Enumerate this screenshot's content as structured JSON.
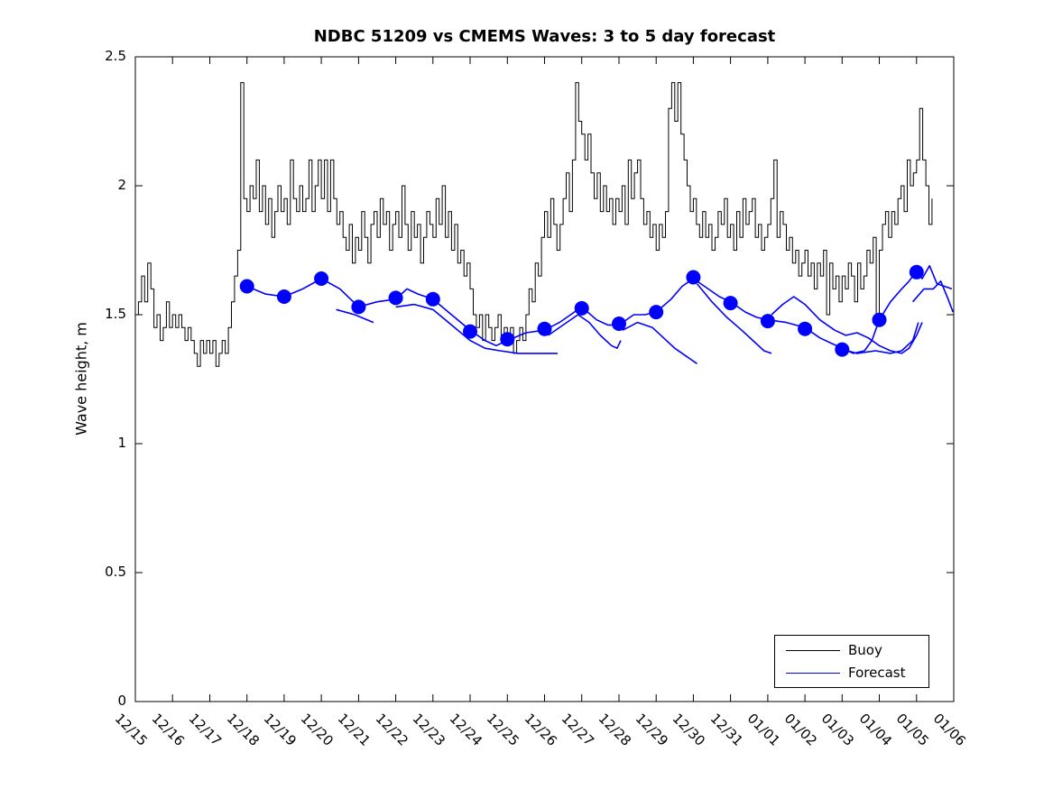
{
  "figure": {
    "title": "NDBC 51209 vs CMEMS Waves: 3 to 5 day forecast",
    "ylabel": "Wave height, m",
    "background_color": "#ffffff",
    "axis_color": "#000000"
  },
  "legend": {
    "items": [
      {
        "label": "Buoy",
        "color": "#000000"
      },
      {
        "label": "Forecast",
        "color": "#0000ff"
      }
    ]
  },
  "chart_data": {
    "type": "line",
    "title": "NDBC 51209 vs CMEMS Waves: 3 to 5 day forecast",
    "xlabel": "",
    "ylabel": "Wave height, m",
    "ylim": [
      0,
      2.5
    ],
    "yticks": [
      0,
      0.5,
      1,
      1.5,
      2,
      2.5
    ],
    "ytick_labels": [
      "0",
      "0.5",
      "1",
      "1.5",
      "2",
      "2.5"
    ],
    "xlim_days": [
      0,
      22
    ],
    "xtick_days": [
      0,
      1,
      2,
      3,
      4,
      5,
      6,
      7,
      8,
      9,
      10,
      11,
      12,
      13,
      14,
      15,
      16,
      17,
      18,
      19,
      20,
      21,
      22
    ],
    "xtick_labels": [
      "12/15",
      "12/16",
      "12/17",
      "12/18",
      "12/19",
      "12/20",
      "12/21",
      "12/22",
      "12/23",
      "12/24",
      "12/25",
      "12/26",
      "12/27",
      "12/28",
      "12/29",
      "12/30",
      "12/31",
      "01/01",
      "01/02",
      "01/03",
      "01/04",
      "01/05",
      "01/06"
    ],
    "xtick_label_rotation_deg": 45,
    "grid": false,
    "legend_position": "southeast",
    "series": [
      {
        "name": "Buoy",
        "color": "#000000",
        "line_width": 1,
        "units": "m",
        "t0_days": 0,
        "dt_days": 0.083333,
        "values": [
          1.5,
          1.55,
          1.65,
          1.55,
          1.7,
          1.6,
          1.45,
          1.5,
          1.4,
          1.45,
          1.55,
          1.45,
          1.5,
          1.45,
          1.5,
          1.45,
          1.4,
          1.45,
          1.4,
          1.35,
          1.3,
          1.4,
          1.35,
          1.4,
          1.35,
          1.4,
          1.3,
          1.35,
          1.4,
          1.35,
          1.45,
          1.55,
          1.65,
          1.75,
          2.4,
          1.95,
          1.9,
          2.0,
          1.95,
          2.1,
          1.9,
          2.0,
          1.85,
          1.95,
          1.8,
          1.9,
          2.0,
          1.9,
          1.95,
          1.85,
          2.1,
          1.95,
          1.9,
          2.0,
          1.9,
          1.95,
          2.1,
          1.9,
          2.0,
          2.1,
          1.95,
          2.1,
          1.9,
          2.1,
          1.95,
          1.85,
          1.9,
          1.8,
          1.75,
          1.85,
          1.7,
          1.8,
          1.75,
          1.9,
          1.8,
          1.7,
          1.85,
          1.9,
          1.8,
          1.95,
          1.85,
          1.9,
          1.75,
          1.85,
          1.9,
          1.8,
          2.0,
          1.85,
          1.75,
          1.9,
          1.8,
          1.85,
          1.7,
          1.8,
          1.9,
          1.85,
          1.8,
          1.95,
          1.85,
          2.0,
          1.8,
          1.9,
          1.75,
          1.85,
          1.7,
          1.75,
          1.65,
          1.7,
          1.6,
          1.5,
          1.45,
          1.5,
          1.4,
          1.5,
          1.45,
          1.4,
          1.45,
          1.5,
          1.4,
          1.45,
          1.4,
          1.45,
          1.35,
          1.4,
          1.45,
          1.4,
          1.5,
          1.6,
          1.55,
          1.7,
          1.65,
          1.8,
          1.9,
          1.8,
          1.95,
          1.85,
          1.75,
          1.85,
          1.95,
          2.05,
          1.9,
          2.1,
          2.4,
          2.25,
          2.2,
          2.1,
          2.2,
          2.05,
          1.95,
          2.05,
          1.9,
          2.0,
          1.9,
          1.95,
          1.85,
          1.95,
          1.9,
          2.0,
          1.85,
          2.1,
          1.95,
          2.05,
          2.1,
          1.95,
          1.85,
          1.9,
          1.8,
          1.85,
          1.75,
          1.85,
          1.8,
          1.9,
          2.3,
          2.4,
          2.25,
          2.4,
          2.2,
          2.1,
          2.0,
          1.9,
          1.95,
          1.85,
          1.8,
          1.9,
          1.8,
          1.85,
          1.75,
          1.8,
          1.9,
          1.85,
          1.95,
          1.8,
          1.85,
          1.75,
          1.9,
          1.8,
          1.95,
          1.85,
          1.9,
          1.95,
          1.8,
          1.85,
          1.75,
          1.8,
          1.85,
          1.95,
          2.1,
          1.8,
          1.9,
          1.85,
          1.75,
          1.8,
          1.7,
          1.75,
          1.65,
          1.7,
          1.75,
          1.65,
          1.7,
          1.6,
          1.7,
          1.65,
          1.75,
          1.5,
          1.7,
          1.6,
          1.65,
          1.55,
          1.65,
          1.6,
          1.7,
          1.65,
          1.55,
          1.7,
          1.6,
          1.65,
          1.75,
          1.7,
          1.8,
          1.5,
          1.75,
          1.85,
          1.9,
          1.8,
          1.9,
          1.85,
          1.95,
          2.0,
          1.9,
          2.1,
          2.0,
          2.05,
          2.1,
          2.3,
          2.1,
          2.0,
          1.85,
          1.95
        ]
      },
      {
        "name": "Forecast",
        "color": "#0000ff",
        "line_width": 1.6,
        "units": "m",
        "marker_style": "filled-circle",
        "marker_radius_px": 8,
        "main": [
          [
            3.0,
            1.61
          ],
          [
            3.5,
            1.58
          ],
          [
            4.0,
            1.57
          ],
          [
            4.5,
            1.6
          ],
          [
            5.0,
            1.64
          ],
          [
            5.5,
            1.6
          ],
          [
            6.0,
            1.53
          ],
          [
            6.5,
            1.55
          ],
          [
            7.0,
            1.56
          ],
          [
            7.3,
            1.6
          ],
          [
            7.6,
            1.58
          ],
          [
            8.0,
            1.56
          ],
          [
            8.5,
            1.5
          ],
          [
            9.0,
            1.44
          ],
          [
            9.4,
            1.4
          ],
          [
            9.7,
            1.38
          ],
          [
            10.0,
            1.4
          ],
          [
            10.5,
            1.43
          ],
          [
            11.0,
            1.44
          ],
          [
            11.4,
            1.47
          ],
          [
            11.7,
            1.5
          ],
          [
            12.0,
            1.53
          ],
          [
            12.4,
            1.48
          ],
          [
            12.7,
            1.46
          ],
          [
            13.0,
            1.46
          ],
          [
            13.4,
            1.5
          ],
          [
            13.7,
            1.5
          ],
          [
            14.0,
            1.51
          ],
          [
            14.4,
            1.56
          ],
          [
            14.7,
            1.61
          ],
          [
            15.0,
            1.64
          ],
          [
            15.4,
            1.6
          ],
          [
            15.7,
            1.57
          ],
          [
            16.0,
            1.55
          ],
          [
            16.4,
            1.51
          ],
          [
            16.7,
            1.49
          ],
          [
            17.0,
            1.48
          ],
          [
            17.5,
            1.47
          ],
          [
            18.0,
            1.45
          ],
          [
            18.4,
            1.41
          ],
          [
            18.7,
            1.39
          ],
          [
            19.0,
            1.37
          ],
          [
            19.3,
            1.35
          ],
          [
            19.6,
            1.36
          ],
          [
            19.8,
            1.4
          ],
          [
            20.0,
            1.48
          ],
          [
            20.3,
            1.55
          ],
          [
            20.6,
            1.6
          ],
          [
            20.8,
            1.63
          ],
          [
            21.0,
            1.67
          ],
          [
            21.15,
            1.64
          ],
          [
            21.35,
            1.69
          ],
          [
            21.55,
            1.62
          ],
          [
            21.75,
            1.61
          ],
          [
            21.95,
            1.6
          ]
        ],
        "extra_segments": [
          [
            [
              5.4,
              1.52
            ],
            [
              5.9,
              1.5
            ],
            [
              6.4,
              1.47
            ]
          ],
          [
            [
              7.0,
              1.53
            ],
            [
              7.5,
              1.54
            ],
            [
              8.0,
              1.52
            ],
            [
              8.5,
              1.46
            ],
            [
              9.0,
              1.4
            ],
            [
              9.4,
              1.37
            ],
            [
              9.8,
              1.36
            ],
            [
              10.3,
              1.35
            ],
            [
              10.9,
              1.35
            ],
            [
              11.35,
              1.35
            ]
          ],
          [
            [
              11.1,
              1.42
            ],
            [
              11.5,
              1.46
            ],
            [
              11.9,
              1.5
            ],
            [
              12.2,
              1.47
            ],
            [
              12.5,
              1.42
            ],
            [
              12.8,
              1.38
            ],
            [
              12.95,
              1.37
            ],
            [
              13.05,
              1.4
            ]
          ],
          [
            [
              13.1,
              1.44
            ],
            [
              13.5,
              1.47
            ],
            [
              13.9,
              1.45
            ],
            [
              14.2,
              1.41
            ],
            [
              14.5,
              1.37
            ],
            [
              14.8,
              1.34
            ],
            [
              15.1,
              1.31
            ]
          ],
          [
            [
              15.1,
              1.62
            ],
            [
              15.5,
              1.55
            ],
            [
              15.9,
              1.49
            ],
            [
              16.3,
              1.44
            ],
            [
              16.6,
              1.4
            ],
            [
              16.9,
              1.36
            ],
            [
              17.1,
              1.35
            ]
          ],
          [
            [
              17.1,
              1.5
            ],
            [
              17.4,
              1.54
            ],
            [
              17.7,
              1.57
            ],
            [
              18.0,
              1.54
            ],
            [
              18.4,
              1.48
            ],
            [
              18.8,
              1.44
            ],
            [
              19.1,
              1.42
            ],
            [
              19.4,
              1.43
            ],
            [
              19.7,
              1.41
            ],
            [
              20.0,
              1.38
            ],
            [
              20.3,
              1.36
            ],
            [
              20.6,
              1.35
            ],
            [
              20.8,
              1.37
            ],
            [
              21.0,
              1.42
            ],
            [
              21.15,
              1.47
            ]
          ],
          [
            [
              18.9,
              1.37
            ],
            [
              19.4,
              1.35
            ],
            [
              19.9,
              1.36
            ],
            [
              20.3,
              1.35
            ],
            [
              20.6,
              1.36
            ],
            [
              20.9,
              1.4
            ],
            [
              21.05,
              1.47
            ]
          ],
          [
            [
              20.9,
              1.55
            ],
            [
              21.2,
              1.6
            ],
            [
              21.45,
              1.6
            ],
            [
              21.65,
              1.63
            ],
            [
              21.85,
              1.56
            ],
            [
              21.98,
              1.51
            ]
          ]
        ],
        "markers": [
          [
            3,
            1.61
          ],
          [
            4,
            1.57
          ],
          [
            5,
            1.64
          ],
          [
            6,
            1.53
          ],
          [
            7,
            1.565
          ],
          [
            8,
            1.56
          ],
          [
            9,
            1.435
          ],
          [
            10,
            1.405
          ],
          [
            11,
            1.445
          ],
          [
            12,
            1.525
          ],
          [
            13,
            1.465
          ],
          [
            14,
            1.51
          ],
          [
            15,
            1.645
          ],
          [
            16,
            1.545
          ],
          [
            17,
            1.475
          ],
          [
            18,
            1.445
          ],
          [
            19,
            1.365
          ],
          [
            20,
            1.48
          ],
          [
            21,
            1.665
          ]
        ]
      }
    ]
  }
}
